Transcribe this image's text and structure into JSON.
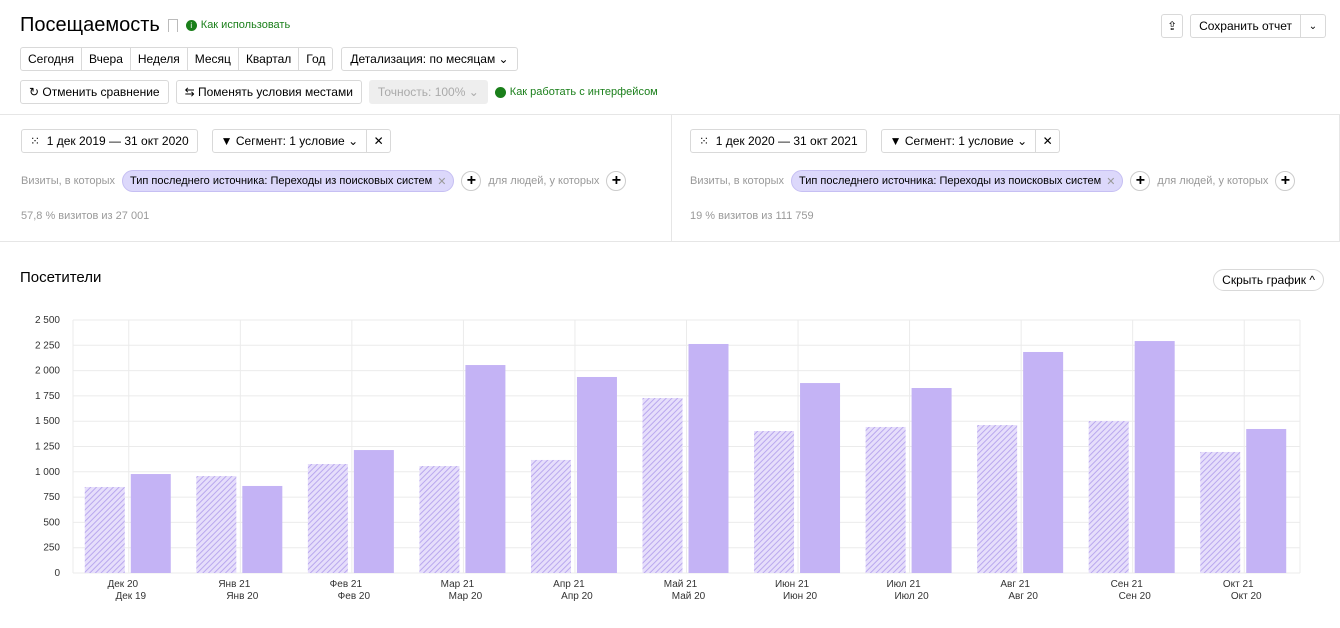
{
  "header": {
    "title": "Посещаемость",
    "help_link": "Как использовать",
    "save_label": "Сохранить отчет"
  },
  "periods": [
    "Сегодня",
    "Вчера",
    "Неделя",
    "Месяц",
    "Квартал",
    "Год"
  ],
  "detail_label": "Детализация: по месяцам",
  "toolbar": {
    "cancel_compare": "Отменить сравнение",
    "swap": "Поменять условия местами",
    "accuracy": "Точность: 100%",
    "interface_help": "Как работать с интерфейсом"
  },
  "segments": [
    {
      "date_range": "1 дек 2019 — 31 окт 2020",
      "segment": "Сегмент: 1 условие",
      "visits_label": "Визиты, в которых",
      "condition": "Тип последнего источника: Переходы из поисковых систем",
      "people_label": "для людей, у которых",
      "stat": "57,8 % визитов из 27 001"
    },
    {
      "date_range": "1 дек 2020 — 31 окт 2021",
      "segment": "Сегмент: 1 условие",
      "visits_label": "Визиты, в которых",
      "condition": "Тип последнего источника: Переходы из поисковых систем",
      "people_label": "для людей, у которых",
      "stat": "19 % визитов из 111 759"
    }
  ],
  "chart_section": {
    "title": "Посетители",
    "hide_label": "Скрыть график"
  },
  "chart_data": {
    "type": "bar",
    "title": "Посетители",
    "ylim": [
      0,
      2500
    ],
    "yticks": [
      "0",
      "250",
      "500",
      "750",
      "1 000",
      "1 250",
      "1 500",
      "1 750",
      "2 000",
      "2 250",
      "2 500"
    ],
    "categories": [
      [
        "Дек 20",
        "Дек 19"
      ],
      [
        "Янв 21",
        "Янв 20"
      ],
      [
        "Фев 21",
        "Фев 20"
      ],
      [
        "Мар 21",
        "Мар 20"
      ],
      [
        "Апр 21",
        "Апр 20"
      ],
      [
        "Май 21",
        "Май 20"
      ],
      [
        "Июн 21",
        "Июн 20"
      ],
      [
        "Июл 21",
        "Июл 20"
      ],
      [
        "Авг 21",
        "Авг 20"
      ],
      [
        "Сен 21",
        "Сен 20"
      ],
      [
        "Окт 21",
        "Окт 20"
      ]
    ],
    "series": [
      {
        "name": "1 дек 2019 — 31 окт 2020",
        "style": "hatched",
        "values": [
          850,
          958,
          1077,
          1057,
          1117,
          1729,
          1403,
          1443,
          1462,
          1502,
          1196
        ]
      },
      {
        "name": "1 дек 2020 — 31 окт 2021",
        "style": "solid",
        "values": [
          978,
          860,
          1215,
          2055,
          1937,
          2263,
          1877,
          1828,
          2184,
          2292,
          1423
        ]
      }
    ],
    "colors": {
      "bar": "#c4b3f5",
      "hatch": "#b9a8ee"
    }
  }
}
